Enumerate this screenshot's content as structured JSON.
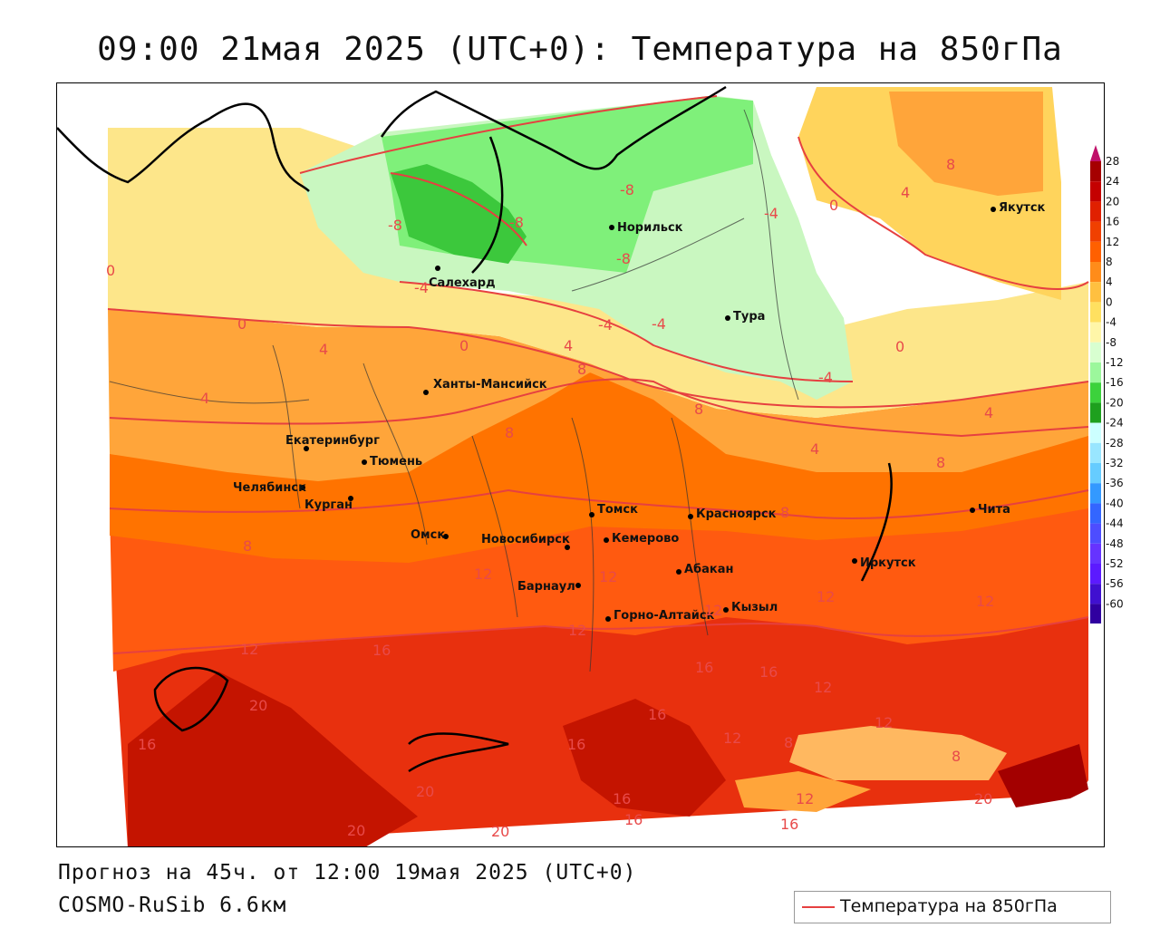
{
  "title": "09:00 21мая 2025 (UTC+0): Температура на 850гПа",
  "forecast_line": "Прогноз на 45ч. от 12:00 19мая 2025 (UTC+0)",
  "model_line": "COSMO-RuSib 6.6км",
  "legend": {
    "label": "Температура на 850гПа",
    "line_color": "#e64040"
  },
  "colorbar": {
    "ticks": [
      "28",
      "24",
      "20",
      "16",
      "12",
      "8",
      "4",
      "0",
      "-4",
      "-8",
      "-12",
      "-16",
      "-20",
      "-24",
      "-28",
      "-32",
      "-36",
      "-40",
      "-44",
      "-48",
      "-52",
      "-56",
      "-60"
    ],
    "colors": [
      "#a50000",
      "#c40000",
      "#e02000",
      "#f04000",
      "#ff6000",
      "#ff8c1a",
      "#ffc040",
      "#ffe060",
      "#fff6a8",
      "#d8ffd0",
      "#9cf79c",
      "#3cd23c",
      "#1ea01e",
      "#ccffff",
      "#99e6ff",
      "#66ccff",
      "#3399ff",
      "#3366ff",
      "#4d4dff",
      "#6633ff",
      "#5c1aff",
      "#4010d0",
      "#3000a0"
    ]
  },
  "cities": [
    {
      "name": "Салехард"
    },
    {
      "name": "Норильск"
    },
    {
      "name": "Тура"
    },
    {
      "name": "Якутск"
    },
    {
      "name": "Ханты-Мансийск"
    },
    {
      "name": "Екатеринбург"
    },
    {
      "name": "Тюмень"
    },
    {
      "name": "Челябинск"
    },
    {
      "name": "Курган"
    },
    {
      "name": "Омск"
    },
    {
      "name": "Новосибирск"
    },
    {
      "name": "Томск"
    },
    {
      "name": "Кемерово"
    },
    {
      "name": "Красноярск"
    },
    {
      "name": "Абакан"
    },
    {
      "name": "Барнаул"
    },
    {
      "name": "Горно-Алтайск"
    },
    {
      "name": "Кызыл"
    },
    {
      "name": "Иркутск"
    },
    {
      "name": "Чита"
    }
  ],
  "contour_labels": [
    {
      "text": "8"
    },
    {
      "text": "4"
    },
    {
      "text": "0"
    },
    {
      "text": "-8"
    },
    {
      "text": "-8"
    },
    {
      "text": "-8"
    },
    {
      "text": "-4"
    },
    {
      "text": "-8"
    },
    {
      "text": "-4"
    },
    {
      "text": "0"
    },
    {
      "text": "0"
    },
    {
      "text": "4"
    },
    {
      "text": "0"
    },
    {
      "text": "-4"
    },
    {
      "text": "-4"
    },
    {
      "text": "4"
    },
    {
      "text": "8"
    },
    {
      "text": "-4"
    },
    {
      "text": "0"
    },
    {
      "text": "4"
    },
    {
      "text": "8"
    },
    {
      "text": "4"
    },
    {
      "text": "4"
    },
    {
      "text": "8"
    },
    {
      "text": "8"
    },
    {
      "text": "8"
    },
    {
      "text": "8"
    },
    {
      "text": "12"
    },
    {
      "text": "12"
    },
    {
      "text": "12"
    },
    {
      "text": "12"
    },
    {
      "text": "12"
    },
    {
      "text": "12"
    },
    {
      "text": "12"
    },
    {
      "text": "16"
    },
    {
      "text": "20"
    },
    {
      "text": "16"
    },
    {
      "text": "16"
    },
    {
      "text": "16"
    },
    {
      "text": "16"
    },
    {
      "text": "12"
    },
    {
      "text": "16"
    },
    {
      "text": "8"
    },
    {
      "text": "12"
    },
    {
      "text": "8"
    },
    {
      "text": "12"
    },
    {
      "text": "20"
    },
    {
      "text": "16"
    },
    {
      "text": "16"
    },
    {
      "text": "20"
    },
    {
      "text": "20"
    },
    {
      "text": "20"
    },
    {
      "text": "16"
    },
    {
      "text": "12"
    }
  ]
}
